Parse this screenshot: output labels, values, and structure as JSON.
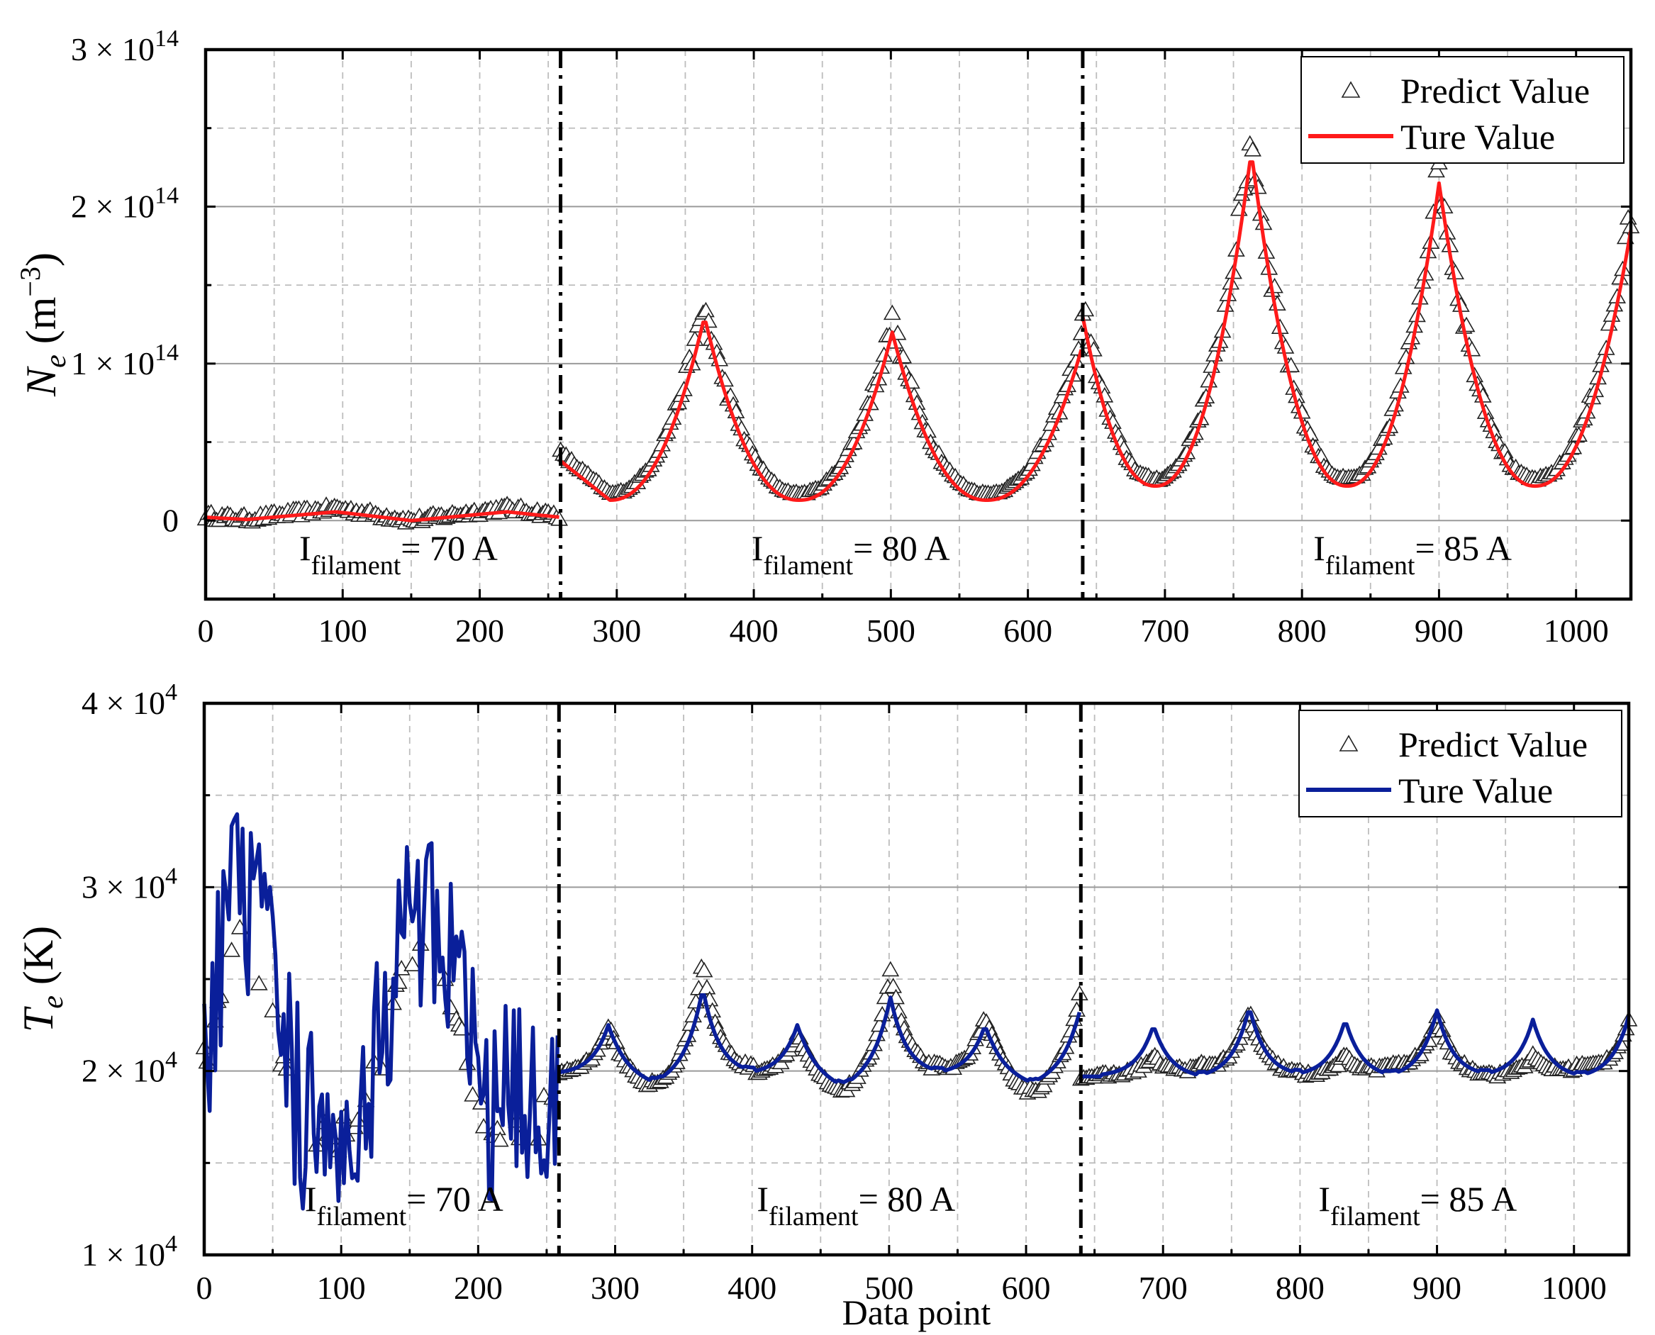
{
  "chart_data": [
    {
      "type": "scatter",
      "title": "",
      "xlabel": "",
      "ylabel": {
        "symbol": "N",
        "sub": "e",
        "unit": "(m",
        "unit_exp": "−3",
        "unit_close": ")"
      },
      "xlim": [
        0,
        1040
      ],
      "ylim": [
        -50000000000000.0,
        300000000000000.0
      ],
      "grid": true,
      "legend_position": "top-right",
      "x_ticks": [
        0,
        100,
        200,
        300,
        400,
        500,
        600,
        700,
        800,
        900,
        1000
      ],
      "x_tick_labels": [
        "0",
        "100",
        "200",
        "300",
        "400",
        "500",
        "600",
        "700",
        "800",
        "900",
        "1000"
      ],
      "y_ticks": [
        0,
        100000000000000.0,
        200000000000000.0,
        300000000000000.0
      ],
      "y_tick_labels": [
        {
          "base": "0",
          "exp": ""
        },
        {
          "base": "1 × 10",
          "exp": "14"
        },
        {
          "base": "2 × 10",
          "exp": "14"
        },
        {
          "base": "3 × 10",
          "exp": "14"
        }
      ],
      "dividers_x": [
        259,
        640
      ],
      "annotations": [
        {
          "x": 120,
          "main": "I",
          "sub": "filament",
          "rest": "= 70 A"
        },
        {
          "x": 450,
          "main": "I",
          "sub": "filament",
          "rest": "= 80 A"
        },
        {
          "x": 860,
          "main": "I",
          "sub": "filament",
          "rest": "= 85 A"
        }
      ],
      "series": [
        {
          "name": "Predict Value",
          "kind": "markers",
          "color": "#222222"
        },
        {
          "name": "Ture Value",
          "kind": "line",
          "color": "#ff1a1a"
        }
      ],
      "segments": [
        {
          "x_start": 0,
          "x_end": 259,
          "shape": "flat",
          "anchors": [
            [
              0,
              3000000000000.0
            ],
            [
              30,
              1000000000000.0
            ],
            [
              95,
              8000000000000.0
            ],
            [
              150,
              0.0
            ],
            [
              220,
              8000000000000.0
            ],
            [
              259,
              3000000000000.0
            ]
          ]
        },
        {
          "x_start": 259,
          "x_end": 640,
          "shape": "cusp",
          "valleys": [
            [
              259,
              38000000000000.0
            ],
            [
              295,
              13000000000000.0
            ],
            [
              433,
              13000000000000.0
            ],
            [
              570,
              13000000000000.0
            ]
          ],
          "peaks": [
            [
              364,
              130000000000000.0
            ],
            [
              501,
              120000000000000.0
            ],
            [
              640,
              112000000000000.0
            ]
          ]
        },
        {
          "x_start": 640,
          "x_end": 1040,
          "shape": "cusp",
          "valleys": [
            [
              693,
              22000000000000.0
            ],
            [
              833,
              22000000000000.0
            ],
            [
              970,
              22000000000000.0
            ]
          ],
          "peaks": [
            [
              640,
              130000000000000.0
            ],
            [
              763,
              235000000000000.0
            ],
            [
              900,
              215000000000000.0
            ],
            [
              1040,
              185000000000000.0
            ]
          ]
        }
      ]
    },
    {
      "type": "scatter",
      "title": "",
      "xlabel": "Data point",
      "ylabel": {
        "symbol": "T",
        "sub": "e",
        "unit": "(K)",
        "unit_exp": "",
        "unit_close": ""
      },
      "xlim": [
        0,
        1040
      ],
      "ylim": [
        10000.0,
        40000.0
      ],
      "grid": true,
      "legend_position": "top-right",
      "x_ticks": [
        0,
        100,
        200,
        300,
        400,
        500,
        600,
        700,
        800,
        900,
        1000
      ],
      "x_tick_labels": [
        "0",
        "100",
        "200",
        "300",
        "400",
        "500",
        "600",
        "700",
        "800",
        "900",
        "1000"
      ],
      "y_ticks": [
        10000.0,
        20000.0,
        30000.0,
        40000.0
      ],
      "y_tick_labels": [
        {
          "base": "1 × 10",
          "exp": "4"
        },
        {
          "base": "2 × 10",
          "exp": "4"
        },
        {
          "base": "3 × 10",
          "exp": "4"
        },
        {
          "base": "4 × 10",
          "exp": "4"
        }
      ],
      "dividers_x": [
        259,
        640
      ],
      "annotations": [
        {
          "x": 120,
          "main": "I",
          "sub": "filament",
          "rest": "= 70 A"
        },
        {
          "x": 450,
          "main": "I",
          "sub": "filament",
          "rest": "= 80 A"
        },
        {
          "x": 860,
          "main": "I",
          "sub": "filament",
          "rest": "= 85 A"
        }
      ],
      "series": [
        {
          "name": "Predict Value",
          "kind": "markers",
          "color": "#222222"
        },
        {
          "name": "Ture Value",
          "kind": "line",
          "color": "#0a1f9a"
        }
      ],
      "segments": [
        {
          "x_start": 0,
          "x_end": 259,
          "shape": "noisy",
          "envelope": [
            [
              0,
              22000.0
            ],
            [
              25,
              30000.0
            ],
            [
              45,
              26000.0
            ],
            [
              70,
              18000.0
            ],
            [
              110,
              17500.0
            ],
            [
              155,
              29500.0
            ],
            [
              180,
              25000.0
            ],
            [
              210,
              18000.0
            ],
            [
              259,
              19000.0
            ]
          ],
          "amplitude": 5500
        },
        {
          "x_start": 259,
          "x_end": 640,
          "shape": "spiky",
          "baseline": 19800.0,
          "true_peaks": [
            [
              295,
              22500.0
            ],
            [
              364,
              24500.0
            ],
            [
              433,
              22500.0
            ],
            [
              501,
              24000.0
            ],
            [
              570,
              22500.0
            ],
            [
              640,
              23500.0
            ]
          ],
          "pred_peaks": [
            [
              295,
              22500.0
            ],
            [
              364,
              26000.0
            ],
            [
              433,
              22000.0
            ],
            [
              501,
              25500.0
            ],
            [
              570,
              23000.0
            ],
            [
              640,
              24500.0
            ]
          ],
          "true_dips": [
            [
              330,
              19200.0
            ],
            [
              467,
              19000.0
            ],
            [
              605,
              19200.0
            ]
          ],
          "pred_dips": [
            [
              330,
              18800.0
            ],
            [
              467,
              18500.0
            ],
            [
              605,
              18500.0
            ]
          ]
        },
        {
          "x_start": 640,
          "x_end": 1040,
          "shape": "spiky",
          "baseline": 19700.0,
          "true_peaks": [
            [
              693,
              22500.0
            ],
            [
              763,
              23500.0
            ],
            [
              833,
              22800.0
            ],
            [
              900,
              23300.0
            ],
            [
              970,
              22800.0
            ],
            [
              1040,
              23000.0
            ]
          ],
          "pred_peaks": [
            [
              693,
              20800.0
            ],
            [
              763,
              23300.0
            ],
            [
              833,
              20800.0
            ],
            [
              900,
              23000.0
            ],
            [
              970,
              20800.0
            ],
            [
              1040,
              22800.0
            ]
          ],
          "true_dips": [
            [
              728,
              19600.0
            ],
            [
              865,
              19600.0
            ],
            [
              1005,
              19600.0
            ]
          ],
          "pred_dips": [
            [
              728,
              20100.0
            ],
            [
              865,
              20100.0
            ],
            [
              1005,
              20100.0
            ]
          ]
        }
      ]
    }
  ]
}
